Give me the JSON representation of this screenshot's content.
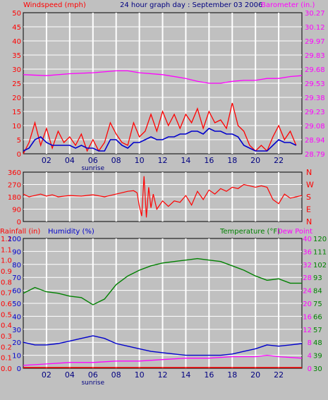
{
  "header": {
    "wind_label": "Windspeed (mph)",
    "title": "24 hour graph day : September 03 2006",
    "baro_label": "Barometer (in.)"
  },
  "bottom_header": {
    "rain_label": "Rainfall (in)",
    "hum_label": "Humidity (%)",
    "temp_label": "Temperature (°F)",
    "dew_label": "Dew Point"
  },
  "sunrise_label": "sunrise",
  "colors": {
    "bg": "#c0c0c0",
    "grid": "#ffffff",
    "wind": "#ff0000",
    "avg_wind": "#0000cc",
    "baro": "#ff00ff",
    "dir": "#ff0000",
    "hum": "#0000cc",
    "temp": "#008000",
    "dew": "#ff00ff",
    "rain": "#ff0000",
    "title": "#000080"
  },
  "chart_data": [
    {
      "type": "line",
      "name_hint": "wind-baro",
      "x_ticks": [
        "02",
        "04",
        "06",
        "08",
        "10",
        "12",
        "14",
        "16",
        "18",
        "20",
        "22"
      ],
      "x_range": [
        0,
        24
      ],
      "left_ticks": [
        "50",
        "45",
        "40",
        "35",
        "30",
        "25",
        "20",
        "15",
        "10",
        "5",
        "0"
      ],
      "left_range": [
        0,
        50
      ],
      "right_ticks": [
        "30.27",
        "30.12",
        "29.97",
        "29.83",
        "29.68",
        "29.53",
        "29.38",
        "29.23",
        "29.08",
        "28.94",
        "28.79"
      ],
      "right_range": [
        28.79,
        30.27
      ],
      "series": {
        "wind": [
          [
            0,
            0
          ],
          [
            0.5,
            4
          ],
          [
            1,
            11
          ],
          [
            1.5,
            3
          ],
          [
            2,
            9
          ],
          [
            2.5,
            2
          ],
          [
            3,
            8
          ],
          [
            3.5,
            4
          ],
          [
            4,
            6
          ],
          [
            4.5,
            3
          ],
          [
            5,
            7
          ],
          [
            5.5,
            1
          ],
          [
            6,
            5
          ],
          [
            6.5,
            1
          ],
          [
            7,
            4
          ],
          [
            7.5,
            11
          ],
          [
            8,
            7
          ],
          [
            8.5,
            4
          ],
          [
            9,
            3
          ],
          [
            9.5,
            11
          ],
          [
            10,
            6
          ],
          [
            10.5,
            8
          ],
          [
            11,
            14
          ],
          [
            11.5,
            8
          ],
          [
            12,
            15
          ],
          [
            12.5,
            10
          ],
          [
            13,
            14
          ],
          [
            13.5,
            9
          ],
          [
            14,
            14
          ],
          [
            14.5,
            11
          ],
          [
            15,
            16
          ],
          [
            15.5,
            9
          ],
          [
            16,
            15
          ],
          [
            16.5,
            11
          ],
          [
            17,
            12
          ],
          [
            17.5,
            9
          ],
          [
            18,
            18
          ],
          [
            18.5,
            10
          ],
          [
            19,
            8
          ],
          [
            19.5,
            3
          ],
          [
            20,
            1
          ],
          [
            20.5,
            3
          ],
          [
            21,
            1
          ],
          [
            21.5,
            6
          ],
          [
            22,
            10
          ],
          [
            22.5,
            5
          ],
          [
            23,
            8
          ],
          [
            23.5,
            3
          ]
        ],
        "avg_wind": [
          [
            0,
            1
          ],
          [
            0.5,
            2
          ],
          [
            1,
            5
          ],
          [
            1.5,
            6
          ],
          [
            2,
            4
          ],
          [
            2.5,
            3
          ],
          [
            3,
            3
          ],
          [
            3.5,
            3
          ],
          [
            4,
            3
          ],
          [
            4.5,
            2
          ],
          [
            5,
            3
          ],
          [
            5.5,
            2
          ],
          [
            6,
            2
          ],
          [
            6.5,
            1
          ],
          [
            7,
            1
          ],
          [
            7.5,
            5
          ],
          [
            8,
            5
          ],
          [
            8.5,
            3
          ],
          [
            9,
            2
          ],
          [
            9.5,
            4
          ],
          [
            10,
            4
          ],
          [
            10.5,
            5
          ],
          [
            11,
            6
          ],
          [
            11.5,
            5
          ],
          [
            12,
            5
          ],
          [
            12.5,
            6
          ],
          [
            13,
            6
          ],
          [
            13.5,
            7
          ],
          [
            14,
            7
          ],
          [
            14.5,
            8
          ],
          [
            15,
            8
          ],
          [
            15.5,
            7
          ],
          [
            16,
            9
          ],
          [
            16.5,
            8
          ],
          [
            17,
            8
          ],
          [
            17.5,
            7
          ],
          [
            18,
            7
          ],
          [
            18.5,
            6
          ],
          [
            19,
            3
          ],
          [
            19.5,
            2
          ],
          [
            20,
            1
          ],
          [
            20.5,
            1
          ],
          [
            21,
            1
          ],
          [
            21.5,
            3
          ],
          [
            22,
            5
          ],
          [
            22.5,
            4
          ],
          [
            23,
            4
          ],
          [
            23.5,
            3
          ]
        ],
        "baro": [
          [
            0,
            29.62
          ],
          [
            2,
            29.61
          ],
          [
            4,
            29.63
          ],
          [
            6,
            29.64
          ],
          [
            8,
            29.66
          ],
          [
            9,
            29.66
          ],
          [
            10,
            29.64
          ],
          [
            12,
            29.62
          ],
          [
            14,
            29.58
          ],
          [
            15,
            29.55
          ],
          [
            16,
            29.53
          ],
          [
            17,
            29.53
          ],
          [
            18,
            29.55
          ],
          [
            19,
            29.56
          ],
          [
            20,
            29.56
          ],
          [
            21,
            29.58
          ],
          [
            22,
            29.58
          ],
          [
            23,
            29.6
          ],
          [
            24,
            29.61
          ]
        ]
      }
    },
    {
      "type": "line",
      "name_hint": "wind-direction",
      "x_range": [
        0,
        24
      ],
      "left_ticks": [
        "360",
        "270",
        "180",
        "90",
        "0"
      ],
      "left_range": [
        0,
        360
      ],
      "right_ticks": [
        "N",
        "W",
        "S",
        "E",
        "N"
      ],
      "series": {
        "dir": [
          [
            0,
            200
          ],
          [
            0.5,
            180
          ],
          [
            1,
            190
          ],
          [
            1.5,
            200
          ],
          [
            2,
            185
          ],
          [
            2.5,
            195
          ],
          [
            3,
            180
          ],
          [
            4,
            190
          ],
          [
            5,
            185
          ],
          [
            6,
            195
          ],
          [
            7,
            180
          ],
          [
            7.5,
            190
          ],
          [
            8,
            200
          ],
          [
            8.5,
            210
          ],
          [
            9,
            220
          ],
          [
            9.5,
            225
          ],
          [
            9.8,
            210
          ],
          [
            10,
            110
          ],
          [
            10.2,
            40
          ],
          [
            10.4,
            330
          ],
          [
            10.6,
            30
          ],
          [
            10.8,
            250
          ],
          [
            11,
            100
          ],
          [
            11.2,
            200
          ],
          [
            11.5,
            90
          ],
          [
            12,
            150
          ],
          [
            12.5,
            110
          ],
          [
            13,
            150
          ],
          [
            13.5,
            140
          ],
          [
            14,
            190
          ],
          [
            14.5,
            120
          ],
          [
            15,
            220
          ],
          [
            15.5,
            160
          ],
          [
            16,
            230
          ],
          [
            16.5,
            200
          ],
          [
            17,
            240
          ],
          [
            17.5,
            220
          ],
          [
            18,
            250
          ],
          [
            18.5,
            240
          ],
          [
            19,
            270
          ],
          [
            19.5,
            260
          ],
          [
            20,
            250
          ],
          [
            20.5,
            260
          ],
          [
            21,
            250
          ],
          [
            21.5,
            160
          ],
          [
            22,
            130
          ],
          [
            22.5,
            200
          ],
          [
            23,
            170
          ],
          [
            23.5,
            180
          ],
          [
            24,
            190
          ]
        ]
      }
    },
    {
      "type": "line",
      "name_hint": "temp-hum-rain",
      "x_range": [
        0,
        24
      ],
      "rain_ticks": [
        "1.2",
        "1.1",
        "1.0",
        "0.9",
        "0.8",
        "0.7",
        "0.6",
        "0.5",
        "0.4",
        "0.3",
        "0.2",
        "0.1",
        "0.0"
      ],
      "hum_ticks": [
        "100",
        "90",
        "80",
        "70",
        "60",
        "50",
        "40",
        "30",
        "20",
        "10",
        "0"
      ],
      "temp_c_ticks": [
        "40",
        "36",
        "32",
        "28",
        "24",
        "20",
        "16",
        "12",
        "8",
        "4",
        "0"
      ],
      "temp_f_ticks": [
        "120",
        "111",
        "102",
        "93",
        "84",
        "75",
        "66",
        "57",
        "48",
        "39",
        "30"
      ],
      "temp_range_f": [
        30,
        120
      ],
      "series": {
        "temp_f": [
          [
            0,
            82
          ],
          [
            1,
            86
          ],
          [
            2,
            83
          ],
          [
            3,
            82
          ],
          [
            4,
            80
          ],
          [
            5,
            79
          ],
          [
            6,
            74
          ],
          [
            7,
            78
          ],
          [
            8,
            88
          ],
          [
            9,
            94
          ],
          [
            10,
            98
          ],
          [
            11,
            101
          ],
          [
            12,
            103
          ],
          [
            13,
            104
          ],
          [
            14,
            105
          ],
          [
            15,
            106
          ],
          [
            16,
            105
          ],
          [
            17,
            104
          ],
          [
            18,
            101
          ],
          [
            19,
            98
          ],
          [
            20,
            94
          ],
          [
            21,
            91
          ],
          [
            22,
            92
          ],
          [
            23,
            89
          ],
          [
            24,
            89
          ]
        ],
        "dew_f": [
          [
            0,
            32
          ],
          [
            2,
            33
          ],
          [
            4,
            34
          ],
          [
            6,
            34
          ],
          [
            8,
            35
          ],
          [
            10,
            35
          ],
          [
            12,
            36
          ],
          [
            14,
            37
          ],
          [
            16,
            37
          ],
          [
            18,
            38
          ],
          [
            20,
            38
          ],
          [
            21,
            39
          ],
          [
            22,
            38
          ],
          [
            24,
            37
          ]
        ],
        "humidity": [
          [
            0,
            20
          ],
          [
            1,
            18
          ],
          [
            2,
            18
          ],
          [
            3,
            19
          ],
          [
            4,
            21
          ],
          [
            5,
            23
          ],
          [
            6,
            25
          ],
          [
            7,
            23
          ],
          [
            8,
            19
          ],
          [
            9,
            17
          ],
          [
            10,
            15
          ],
          [
            11,
            13
          ],
          [
            12,
            12
          ],
          [
            13,
            11
          ],
          [
            14,
            10
          ],
          [
            15,
            10
          ],
          [
            16,
            10
          ],
          [
            17,
            10
          ],
          [
            18,
            11
          ],
          [
            19,
            13
          ],
          [
            20,
            15
          ],
          [
            21,
            18
          ],
          [
            22,
            17
          ],
          [
            23,
            18
          ],
          [
            24,
            19
          ]
        ],
        "rain": [
          [
            0,
            0
          ],
          [
            24,
            0
          ]
        ]
      }
    }
  ]
}
